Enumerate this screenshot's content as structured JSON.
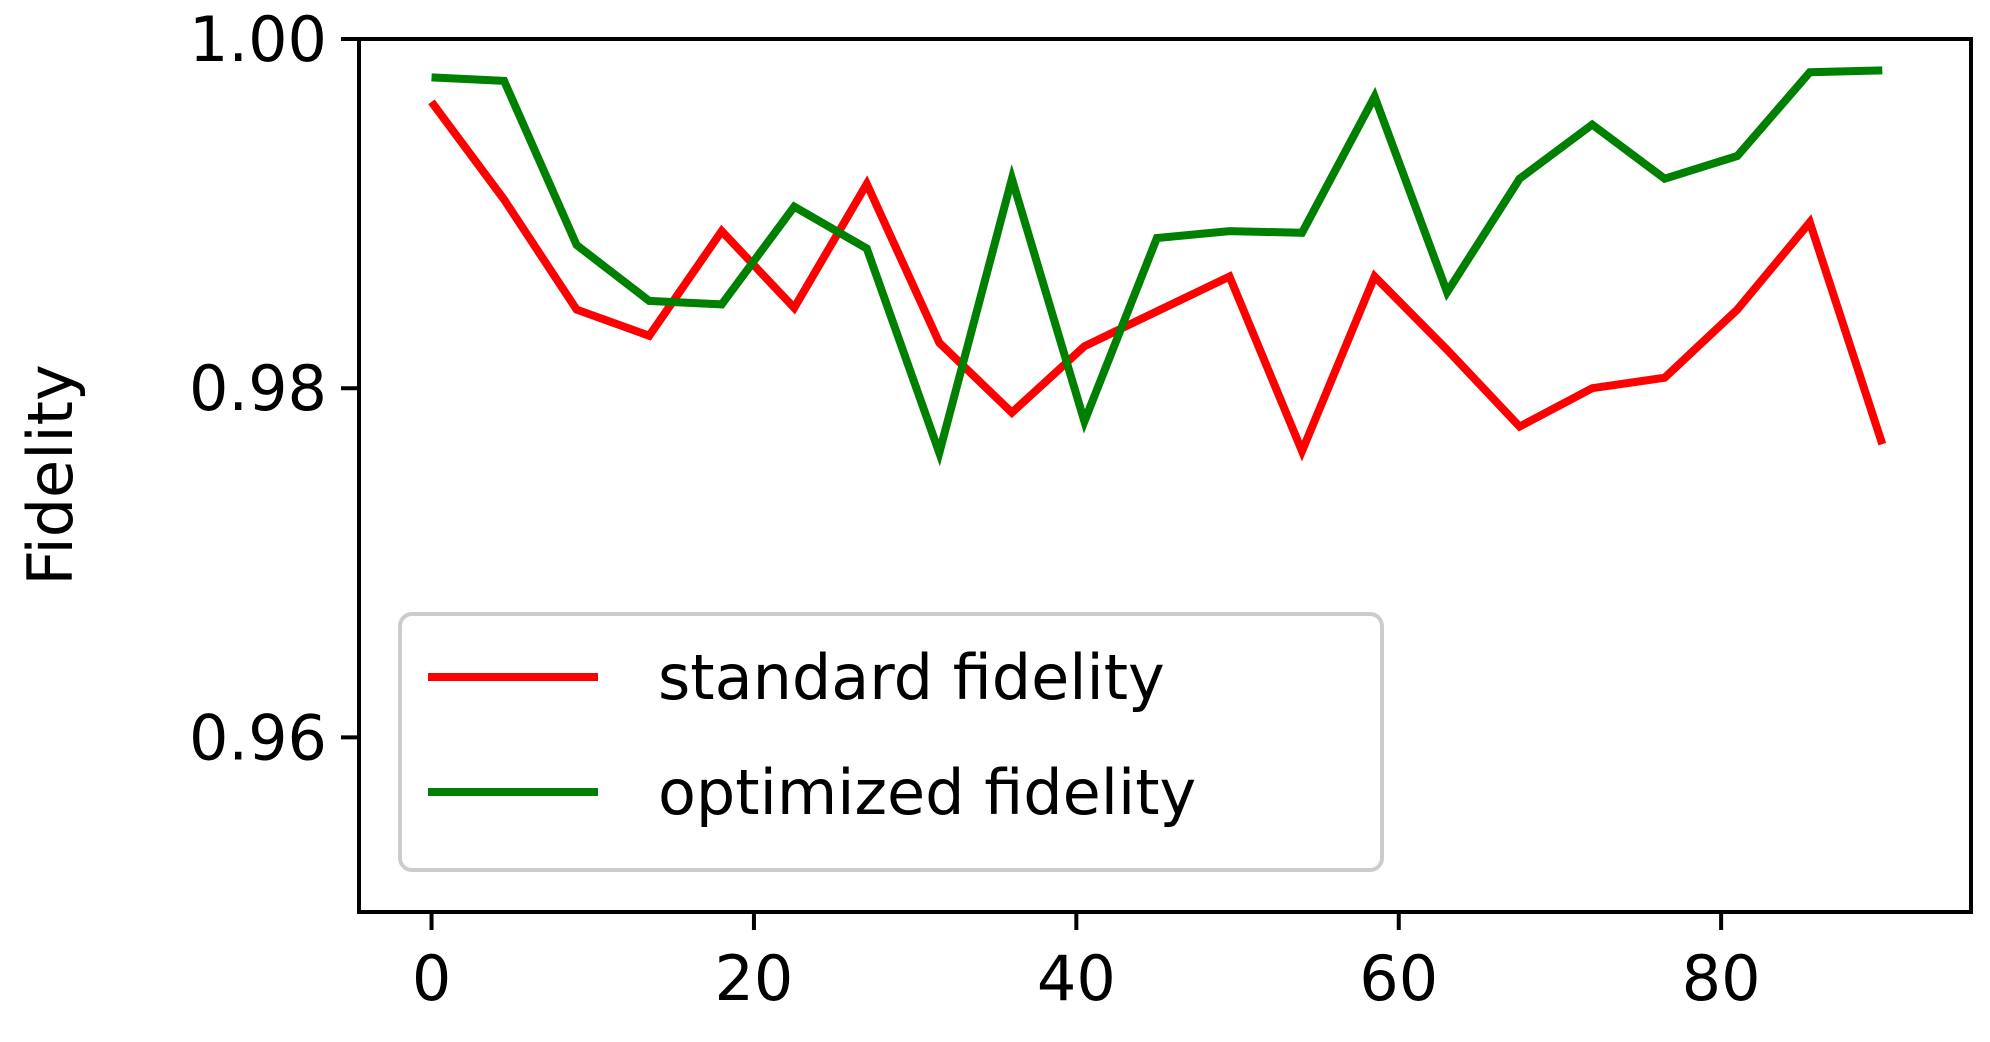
{
  "chart_data": {
    "type": "line",
    "title": "",
    "xlabel": "",
    "ylabel": "Fidelity",
    "xlim": [
      -4.5,
      95.5
    ],
    "ylim": [
      0.95,
      1.0
    ],
    "xticks": [
      0,
      20,
      40,
      60,
      80
    ],
    "yticks": [
      0.96,
      0.98,
      1.0
    ],
    "xtick_labels": [
      "0",
      "20",
      "40",
      "60",
      "80"
    ],
    "ytick_labels": [
      "0.96",
      "0.98",
      "1.00"
    ],
    "grid": false,
    "legend_position": "lower-left",
    "x": [
      0,
      4.5,
      9,
      13.5,
      18,
      22.5,
      27,
      31.5,
      36,
      40.5,
      45,
      49.5,
      54,
      58.5,
      63,
      67.5,
      72,
      76.5,
      81,
      85.5,
      90
    ],
    "series": [
      {
        "name": "standard fidelity",
        "color": "#ff0000",
        "values": [
          0.9964,
          0.9908,
          0.9845,
          0.983,
          0.989,
          0.9846,
          0.9917,
          0.9826,
          0.9786,
          0.9824,
          0.9844,
          0.9864,
          0.9764,
          0.9864,
          0.9822,
          0.9778,
          0.98,
          0.9806,
          0.9845,
          0.9895,
          0.9768
        ]
      },
      {
        "name": "optimized fidelity",
        "color": "#008000",
        "values": [
          0.9978,
          0.9976,
          0.9882,
          0.985,
          0.9848,
          0.9904,
          0.988,
          0.9763,
          0.992,
          0.9781,
          0.9886,
          0.989,
          0.9889,
          0.9967,
          0.9855,
          0.992,
          0.9951,
          0.992,
          0.9933,
          0.9981,
          0.9982
        ]
      }
    ]
  }
}
